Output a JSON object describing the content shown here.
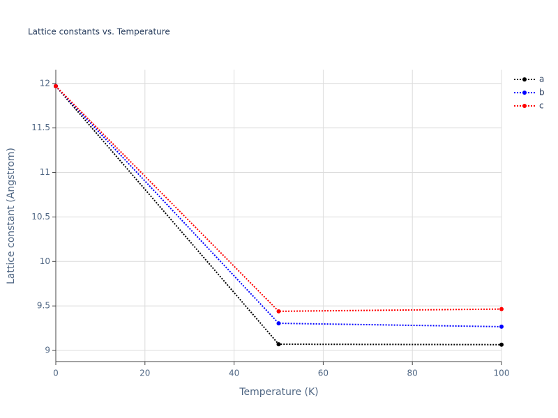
{
  "chart_data": {
    "type": "line",
    "title": "Lattice constants vs. Temperature",
    "x_label": "Temperature (K)",
    "y_label": "Lattice constant (Angstrom)",
    "x": [
      0,
      50,
      100
    ],
    "series": [
      {
        "name": "a",
        "color": "#000000",
        "values": [
          11.97,
          9.07,
          9.065
        ]
      },
      {
        "name": "b",
        "color": "#0000ff",
        "values": [
          11.97,
          9.305,
          9.267
        ]
      },
      {
        "name": "c",
        "color": "#ff0000",
        "values": [
          11.97,
          9.44,
          9.465
        ]
      }
    ],
    "xlim": [
      0,
      100
    ],
    "xticks": [
      0,
      20,
      40,
      60,
      80,
      100
    ],
    "ylim": [
      8.875,
      12.155
    ],
    "yticks": [
      9,
      9.5,
      10,
      10.5,
      11,
      11.5,
      12
    ],
    "grid": true,
    "legend": "top-right"
  }
}
